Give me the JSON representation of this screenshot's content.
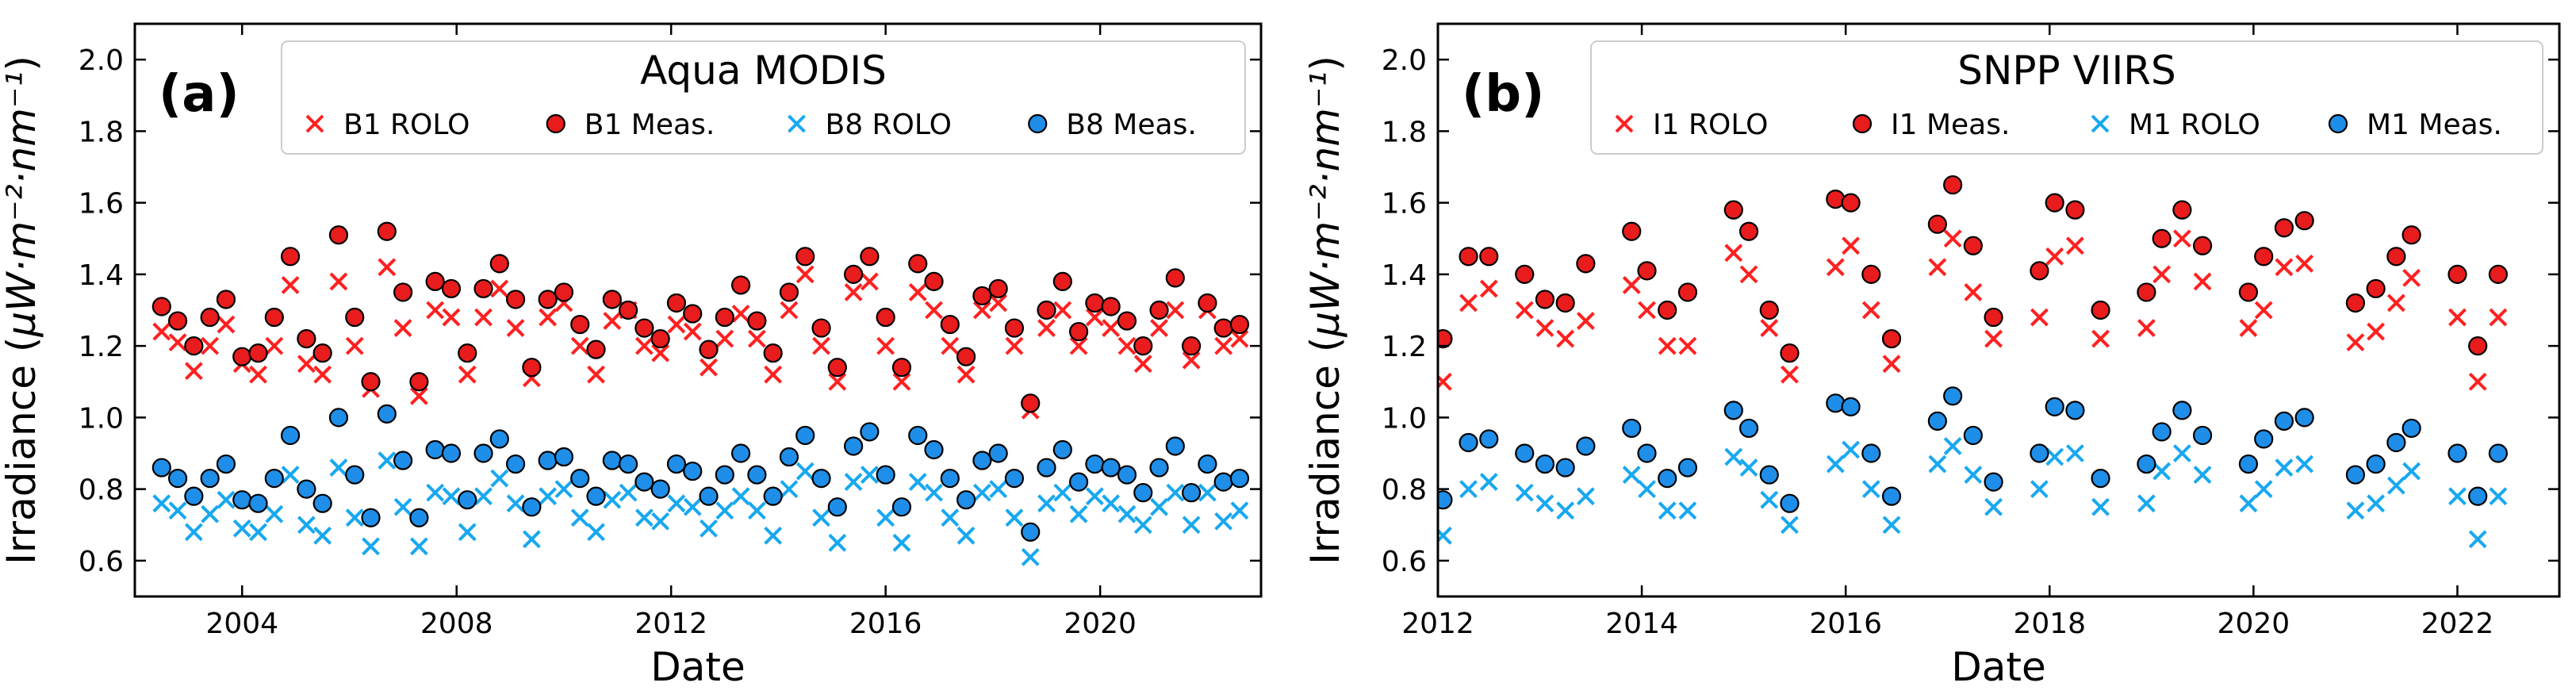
{
  "chart_data": [
    {
      "type": "scatter",
      "panel_label": "(a)",
      "title": "Aqua MODIS",
      "xlabel": "Date",
      "ylabel_main": "Irradiance (",
      "ylabel_unit": "μW·m⁻²·nm⁻¹",
      "ylabel_close": ")",
      "xlim": [
        2002.0,
        2023.0
      ],
      "ylim": [
        0.5,
        2.1
      ],
      "xticks": [
        2004,
        2008,
        2012,
        2016,
        2020
      ],
      "xtick_labels": [
        "2004",
        "2008",
        "2012",
        "2016",
        "2020"
      ],
      "yticks": [
        0.6,
        0.8,
        1.0,
        1.2,
        1.4,
        1.6,
        1.8,
        2.0
      ],
      "ytick_labels": [
        "0.6",
        "0.8",
        "1.0",
        "1.2",
        "1.4",
        "1.6",
        "1.8",
        "2.0"
      ],
      "legend_position": "top-right",
      "series": [
        {
          "name": "B1 ROLO",
          "marker": "x",
          "color": "#ff2020",
          "x": [
            2002.5,
            2002.8,
            2003.1,
            2003.4,
            2003.7,
            2004.0,
            2004.3,
            2004.6,
            2004.9,
            2005.2,
            2005.5,
            2005.8,
            2006.1,
            2006.4,
            2006.7,
            2007.0,
            2007.3,
            2007.6,
            2007.9,
            2008.2,
            2008.5,
            2008.8,
            2009.1,
            2009.4,
            2009.7,
            2010.0,
            2010.3,
            2010.6,
            2010.9,
            2011.2,
            2011.5,
            2011.8,
            2012.1,
            2012.4,
            2012.7,
            2013.0,
            2013.3,
            2013.6,
            2013.9,
            2014.2,
            2014.5,
            2014.8,
            2015.1,
            2015.4,
            2015.7,
            2016.0,
            2016.3,
            2016.6,
            2016.9,
            2017.2,
            2017.5,
            2017.8,
            2018.1,
            2018.4,
            2018.7,
            2019.0,
            2019.3,
            2019.6,
            2019.9,
            2020.2,
            2020.5,
            2020.8,
            2021.1,
            2021.4,
            2021.7,
            2022.0,
            2022.3,
            2022.6
          ],
          "values": [
            1.24,
            1.21,
            1.13,
            1.2,
            1.26,
            1.15,
            1.12,
            1.2,
            1.37,
            1.15,
            1.12,
            1.38,
            1.2,
            1.08,
            1.42,
            1.25,
            1.06,
            1.3,
            1.28,
            1.12,
            1.28,
            1.36,
            1.25,
            1.11,
            1.28,
            1.32,
            1.2,
            1.12,
            1.27,
            1.3,
            1.2,
            1.18,
            1.26,
            1.24,
            1.14,
            1.22,
            1.29,
            1.22,
            1.12,
            1.3,
            1.4,
            1.2,
            1.1,
            1.35,
            1.38,
            1.2,
            1.1,
            1.35,
            1.3,
            1.2,
            1.12,
            1.3,
            1.32,
            1.2,
            1.02,
            1.25,
            1.3,
            1.2,
            1.28,
            1.25,
            1.2,
            1.15,
            1.25,
            1.3,
            1.16,
            1.3,
            1.2,
            1.22
          ]
        },
        {
          "name": "B1 Meas.",
          "marker": "o",
          "color": "#e81c1c",
          "x": [
            2002.5,
            2002.8,
            2003.1,
            2003.4,
            2003.7,
            2004.0,
            2004.3,
            2004.6,
            2004.9,
            2005.2,
            2005.5,
            2005.8,
            2006.1,
            2006.4,
            2006.7,
            2007.0,
            2007.3,
            2007.6,
            2007.9,
            2008.2,
            2008.5,
            2008.8,
            2009.1,
            2009.4,
            2009.7,
            2010.0,
            2010.3,
            2010.6,
            2010.9,
            2011.2,
            2011.5,
            2011.8,
            2012.1,
            2012.4,
            2012.7,
            2013.0,
            2013.3,
            2013.6,
            2013.9,
            2014.2,
            2014.5,
            2014.8,
            2015.1,
            2015.4,
            2015.7,
            2016.0,
            2016.3,
            2016.6,
            2016.9,
            2017.2,
            2017.5,
            2017.8,
            2018.1,
            2018.4,
            2018.7,
            2019.0,
            2019.3,
            2019.6,
            2019.9,
            2020.2,
            2020.5,
            2020.8,
            2021.1,
            2021.4,
            2021.7,
            2022.0,
            2022.3,
            2022.6
          ],
          "values": [
            1.31,
            1.27,
            1.2,
            1.28,
            1.33,
            1.17,
            1.18,
            1.28,
            1.45,
            1.22,
            1.18,
            1.51,
            1.28,
            1.1,
            1.52,
            1.35,
            1.1,
            1.38,
            1.36,
            1.18,
            1.36,
            1.43,
            1.33,
            1.14,
            1.33,
            1.35,
            1.26,
            1.19,
            1.33,
            1.3,
            1.25,
            1.22,
            1.32,
            1.29,
            1.19,
            1.28,
            1.37,
            1.27,
            1.18,
            1.35,
            1.45,
            1.25,
            1.14,
            1.4,
            1.45,
            1.28,
            1.14,
            1.43,
            1.38,
            1.26,
            1.17,
            1.34,
            1.36,
            1.25,
            1.04,
            1.3,
            1.38,
            1.24,
            1.32,
            1.31,
            1.27,
            1.2,
            1.3,
            1.39,
            1.2,
            1.32,
            1.25,
            1.26
          ]
        },
        {
          "name": "B8 ROLO",
          "marker": "x",
          "color": "#18a8f0",
          "x": [
            2002.5,
            2002.8,
            2003.1,
            2003.4,
            2003.7,
            2004.0,
            2004.3,
            2004.6,
            2004.9,
            2005.2,
            2005.5,
            2005.8,
            2006.1,
            2006.4,
            2006.7,
            2007.0,
            2007.3,
            2007.6,
            2007.9,
            2008.2,
            2008.5,
            2008.8,
            2009.1,
            2009.4,
            2009.7,
            2010.0,
            2010.3,
            2010.6,
            2010.9,
            2011.2,
            2011.5,
            2011.8,
            2012.1,
            2012.4,
            2012.7,
            2013.0,
            2013.3,
            2013.6,
            2013.9,
            2014.2,
            2014.5,
            2014.8,
            2015.1,
            2015.4,
            2015.7,
            2016.0,
            2016.3,
            2016.6,
            2016.9,
            2017.2,
            2017.5,
            2017.8,
            2018.1,
            2018.4,
            2018.7,
            2019.0,
            2019.3,
            2019.6,
            2019.9,
            2020.2,
            2020.5,
            2020.8,
            2021.1,
            2021.4,
            2021.7,
            2022.0,
            2022.3,
            2022.6
          ],
          "values": [
            0.76,
            0.74,
            0.68,
            0.73,
            0.77,
            0.69,
            0.68,
            0.73,
            0.84,
            0.7,
            0.67,
            0.86,
            0.72,
            0.64,
            0.88,
            0.75,
            0.64,
            0.79,
            0.78,
            0.68,
            0.78,
            0.83,
            0.76,
            0.66,
            0.78,
            0.8,
            0.72,
            0.68,
            0.77,
            0.79,
            0.72,
            0.71,
            0.76,
            0.75,
            0.69,
            0.74,
            0.78,
            0.74,
            0.67,
            0.8,
            0.85,
            0.72,
            0.65,
            0.82,
            0.84,
            0.72,
            0.65,
            0.82,
            0.79,
            0.72,
            0.67,
            0.79,
            0.8,
            0.72,
            0.61,
            0.76,
            0.79,
            0.73,
            0.78,
            0.76,
            0.73,
            0.7,
            0.75,
            0.79,
            0.7,
            0.79,
            0.71,
            0.74
          ]
        },
        {
          "name": "B8 Meas.",
          "marker": "o",
          "color": "#1e8ee8",
          "x": [
            2002.5,
            2002.8,
            2003.1,
            2003.4,
            2003.7,
            2004.0,
            2004.3,
            2004.6,
            2004.9,
            2005.2,
            2005.5,
            2005.8,
            2006.1,
            2006.4,
            2006.7,
            2007.0,
            2007.3,
            2007.6,
            2007.9,
            2008.2,
            2008.5,
            2008.8,
            2009.1,
            2009.4,
            2009.7,
            2010.0,
            2010.3,
            2010.6,
            2010.9,
            2011.2,
            2011.5,
            2011.8,
            2012.1,
            2012.4,
            2012.7,
            2013.0,
            2013.3,
            2013.6,
            2013.9,
            2014.2,
            2014.5,
            2014.8,
            2015.1,
            2015.4,
            2015.7,
            2016.0,
            2016.3,
            2016.6,
            2016.9,
            2017.2,
            2017.5,
            2017.8,
            2018.1,
            2018.4,
            2018.7,
            2019.0,
            2019.3,
            2019.6,
            2019.9,
            2020.2,
            2020.5,
            2020.8,
            2021.1,
            2021.4,
            2021.7,
            2022.0,
            2022.3,
            2022.6
          ],
          "values": [
            0.86,
            0.83,
            0.78,
            0.83,
            0.87,
            0.77,
            0.76,
            0.83,
            0.95,
            0.8,
            0.76,
            1.0,
            0.84,
            0.72,
            1.01,
            0.88,
            0.72,
            0.91,
            0.9,
            0.77,
            0.9,
            0.94,
            0.87,
            0.75,
            0.88,
            0.89,
            0.83,
            0.78,
            0.88,
            0.87,
            0.82,
            0.8,
            0.87,
            0.85,
            0.78,
            0.84,
            0.9,
            0.84,
            0.78,
            0.89,
            0.95,
            0.83,
            0.75,
            0.92,
            0.96,
            0.84,
            0.75,
            0.95,
            0.91,
            0.83,
            0.77,
            0.88,
            0.9,
            0.83,
            0.68,
            0.86,
            0.91,
            0.82,
            0.87,
            0.86,
            0.84,
            0.79,
            0.86,
            0.92,
            0.79,
            0.87,
            0.82,
            0.83
          ]
        }
      ]
    },
    {
      "type": "scatter",
      "panel_label": "(b)",
      "title": "SNPP VIIRS",
      "xlabel": "Date",
      "ylabel_main": "Irradiance (",
      "ylabel_unit": "μW·m⁻²·nm⁻¹",
      "ylabel_close": ")",
      "xlim": [
        2012.0,
        2023.0
      ],
      "ylim": [
        0.5,
        2.1
      ],
      "xticks": [
        2012,
        2014,
        2016,
        2018,
        2020,
        2022
      ],
      "xtick_labels": [
        "2012",
        "2014",
        "2016",
        "2018",
        "2020",
        "2022"
      ],
      "yticks": [
        0.6,
        0.8,
        1.0,
        1.2,
        1.4,
        1.6,
        1.8,
        2.0
      ],
      "ytick_labels": [
        "0.6",
        "0.8",
        "1.0",
        "1.2",
        "1.4",
        "1.6",
        "1.8",
        "2.0"
      ],
      "legend_position": "top-right",
      "series": [
        {
          "name": "I1 ROLO",
          "marker": "x",
          "color": "#ff2020",
          "x": [
            2012.05,
            2012.3,
            2012.5,
            2012.85,
            2013.05,
            2013.25,
            2013.45,
            2013.9,
            2014.05,
            2014.25,
            2014.45,
            2014.9,
            2015.05,
            2015.25,
            2015.45,
            2015.9,
            2016.05,
            2016.25,
            2016.45,
            2016.9,
            2017.05,
            2017.25,
            2017.45,
            2017.9,
            2018.05,
            2018.25,
            2018.5,
            2018.95,
            2019.1,
            2019.3,
            2019.5,
            2019.95,
            2020.1,
            2020.3,
            2020.5,
            2021.0,
            2021.2,
            2021.4,
            2021.55,
            2022.0,
            2022.2,
            2022.4
          ],
          "values": [
            1.1,
            1.32,
            1.36,
            1.3,
            1.25,
            1.22,
            1.27,
            1.37,
            1.3,
            1.2,
            1.2,
            1.46,
            1.4,
            1.25,
            1.12,
            1.42,
            1.48,
            1.3,
            1.15,
            1.42,
            1.5,
            1.35,
            1.22,
            1.28,
            1.45,
            1.48,
            1.22,
            1.25,
            1.4,
            1.5,
            1.38,
            1.25,
            1.3,
            1.42,
            1.43,
            1.21,
            1.24,
            1.32,
            1.39,
            1.28,
            1.1,
            1.28
          ]
        },
        {
          "name": "I1 Meas.",
          "marker": "o",
          "color": "#e81c1c",
          "x": [
            2012.05,
            2012.3,
            2012.5,
            2012.85,
            2013.05,
            2013.25,
            2013.45,
            2013.9,
            2014.05,
            2014.25,
            2014.45,
            2014.9,
            2015.05,
            2015.25,
            2015.45,
            2015.9,
            2016.05,
            2016.25,
            2016.45,
            2016.9,
            2017.05,
            2017.25,
            2017.45,
            2017.9,
            2018.05,
            2018.25,
            2018.5,
            2018.95,
            2019.1,
            2019.3,
            2019.5,
            2019.95,
            2020.1,
            2020.3,
            2020.5,
            2021.0,
            2021.2,
            2021.4,
            2021.55,
            2022.0,
            2022.2,
            2022.4
          ],
          "values": [
            1.22,
            1.45,
            1.45,
            1.4,
            1.33,
            1.32,
            1.43,
            1.52,
            1.41,
            1.3,
            1.35,
            1.58,
            1.52,
            1.3,
            1.18,
            1.61,
            1.6,
            1.4,
            1.22,
            1.54,
            1.65,
            1.48,
            1.28,
            1.41,
            1.6,
            1.58,
            1.3,
            1.35,
            1.5,
            1.58,
            1.48,
            1.35,
            1.45,
            1.53,
            1.55,
            1.32,
            1.36,
            1.45,
            1.51,
            1.4,
            1.2,
            1.4
          ]
        },
        {
          "name": "M1 ROLO",
          "marker": "x",
          "color": "#18a8f0",
          "x": [
            2012.05,
            2012.3,
            2012.5,
            2012.85,
            2013.05,
            2013.25,
            2013.45,
            2013.9,
            2014.05,
            2014.25,
            2014.45,
            2014.9,
            2015.05,
            2015.25,
            2015.45,
            2015.9,
            2016.05,
            2016.25,
            2016.45,
            2016.9,
            2017.05,
            2017.25,
            2017.45,
            2017.9,
            2018.05,
            2018.25,
            2018.5,
            2018.95,
            2019.1,
            2019.3,
            2019.5,
            2019.95,
            2020.1,
            2020.3,
            2020.5,
            2021.0,
            2021.2,
            2021.4,
            2021.55,
            2022.0,
            2022.2,
            2022.4
          ],
          "values": [
            0.67,
            0.8,
            0.82,
            0.79,
            0.76,
            0.74,
            0.78,
            0.84,
            0.8,
            0.74,
            0.74,
            0.89,
            0.86,
            0.77,
            0.7,
            0.87,
            0.91,
            0.8,
            0.7,
            0.87,
            0.92,
            0.84,
            0.75,
            0.8,
            0.89,
            0.9,
            0.75,
            0.76,
            0.85,
            0.9,
            0.84,
            0.76,
            0.8,
            0.86,
            0.87,
            0.74,
            0.76,
            0.81,
            0.85,
            0.78,
            0.66,
            0.78
          ]
        },
        {
          "name": "M1 Meas.",
          "marker": "o",
          "color": "#1e8ee8",
          "x": [
            2012.05,
            2012.3,
            2012.5,
            2012.85,
            2013.05,
            2013.25,
            2013.45,
            2013.9,
            2014.05,
            2014.25,
            2014.45,
            2014.9,
            2015.05,
            2015.25,
            2015.45,
            2015.9,
            2016.05,
            2016.25,
            2016.45,
            2016.9,
            2017.05,
            2017.25,
            2017.45,
            2017.9,
            2018.05,
            2018.25,
            2018.5,
            2018.95,
            2019.1,
            2019.3,
            2019.5,
            2019.95,
            2020.1,
            2020.3,
            2020.5,
            2021.0,
            2021.2,
            2021.4,
            2021.55,
            2022.0,
            2022.2,
            2022.4
          ],
          "values": [
            0.77,
            0.93,
            0.94,
            0.9,
            0.87,
            0.86,
            0.92,
            0.97,
            0.9,
            0.83,
            0.86,
            1.02,
            0.97,
            0.84,
            0.76,
            1.04,
            1.03,
            0.9,
            0.78,
            0.99,
            1.06,
            0.95,
            0.82,
            0.9,
            1.03,
            1.02,
            0.83,
            0.87,
            0.96,
            1.02,
            0.95,
            0.87,
            0.94,
            0.99,
            1.0,
            0.84,
            0.87,
            0.93,
            0.97,
            0.9,
            0.78,
            0.9
          ]
        }
      ]
    }
  ]
}
